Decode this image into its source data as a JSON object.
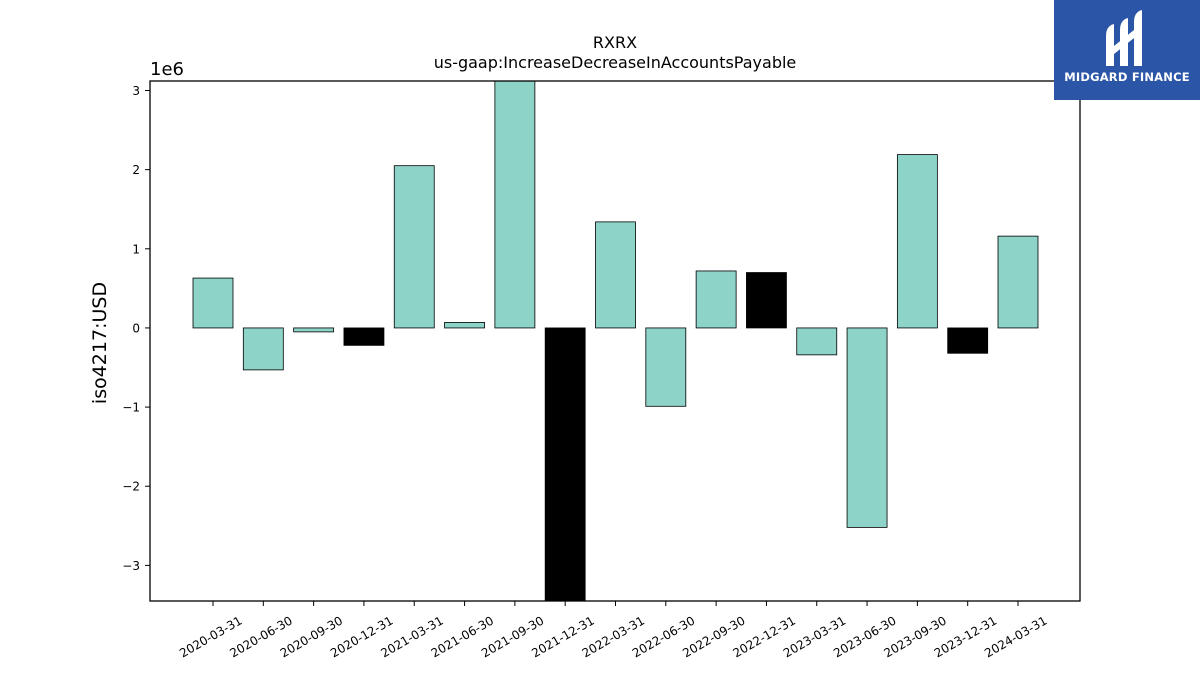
{
  "chart_data": {
    "type": "bar",
    "title": "RXRX",
    "subtitle": "us-gaap:IncreaseDecreaseInAccountsPayable",
    "ylabel": "iso4217:USD",
    "xlabel": "",
    "offset_label": "1e6",
    "ylim": [
      -3450000,
      3120000
    ],
    "yticks": [
      -3,
      -2,
      -1,
      0,
      1,
      2,
      3
    ],
    "ytick_labels": [
      "−3",
      "−2",
      "−1",
      "0",
      "1",
      "2",
      "3"
    ],
    "categories": [
      "2020-03-31",
      "2020-06-30",
      "2020-09-30",
      "2020-12-31",
      "2021-03-31",
      "2021-06-30",
      "2021-09-30",
      "2021-12-31",
      "2022-03-31",
      "2022-06-30",
      "2022-09-30",
      "2022-12-31",
      "2023-03-31",
      "2023-06-30",
      "2023-09-30",
      "2023-12-31",
      "2024-03-31"
    ],
    "values": [
      630000,
      -530000,
      -50000,
      -220000,
      2050000,
      70000,
      3150000,
      -3500000,
      1340000,
      -990000,
      720000,
      700000,
      -340000,
      -2520000,
      2190000,
      -320000,
      1160000
    ],
    "bar_colors": [
      "#8dd3c7",
      "#8dd3c7",
      "#8dd3c7",
      "#000000",
      "#8dd3c7",
      "#8dd3c7",
      "#8dd3c7",
      "#000000",
      "#8dd3c7",
      "#8dd3c7",
      "#8dd3c7",
      "#000000",
      "#8dd3c7",
      "#8dd3c7",
      "#8dd3c7",
      "#000000",
      "#8dd3c7"
    ],
    "grid": false,
    "legend": "none"
  },
  "logo": {
    "text": "MIDGARD FINANCE",
    "background": "#2b56a8"
  }
}
